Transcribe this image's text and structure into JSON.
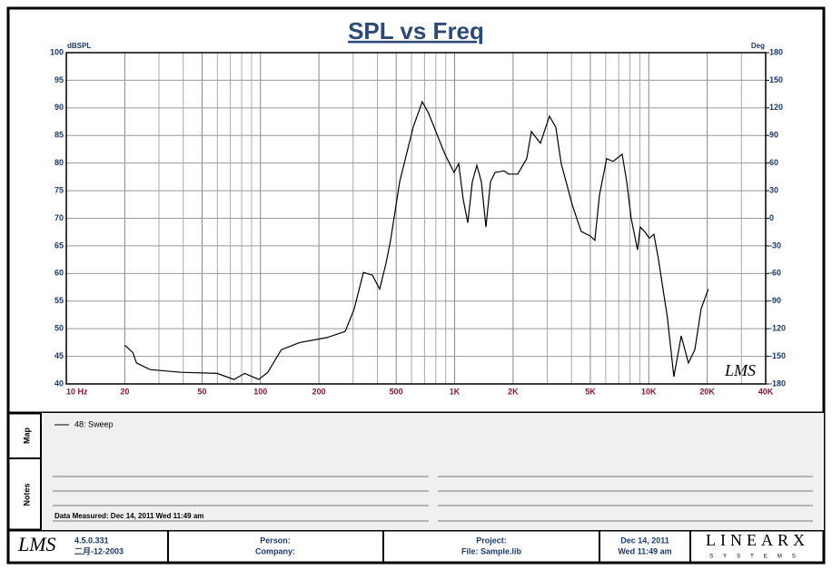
{
  "chart_data": {
    "type": "line",
    "title": "SPL vs Freq",
    "ylabel": "dBSPL",
    "y2label": "Deg",
    "annotation": "LMS",
    "xscale": "log",
    "grid": true,
    "xlim": [
      10,
      40000
    ],
    "xticks": [
      {
        "value": 10,
        "label": "10  Hz"
      },
      20,
      50,
      100,
      200,
      500,
      {
        "value": 1000,
        "label": "1K"
      },
      {
        "value": 2000,
        "label": "2K"
      },
      {
        "value": 5000,
        "label": "5K"
      },
      {
        "value": 10000,
        "label": "10K"
      },
      {
        "value": 20000,
        "label": "20K"
      },
      {
        "value": 40000,
        "label": "40K"
      }
    ],
    "xminorticks": [
      30,
      40,
      60,
      70,
      80,
      90,
      300,
      400,
      600,
      700,
      800,
      900,
      3000,
      4000,
      6000,
      7000,
      8000,
      9000,
      30000
    ],
    "ylim": [
      40,
      100
    ],
    "yticks": [
      40,
      45,
      50,
      55,
      60,
      65,
      70,
      75,
      80,
      85,
      90,
      95,
      100
    ],
    "y2lim": [
      -180,
      180
    ],
    "y2ticks": [
      -180,
      -150,
      -120,
      -90,
      -60,
      -30,
      0,
      30,
      60,
      90,
      120,
      150,
      180
    ],
    "series": [
      {
        "name": "48: Sweep",
        "color": "#000000",
        "x": [
          20,
          22,
          23,
          27,
          39,
          60,
          73,
          83,
          98,
          109,
          128,
          159,
          220,
          273,
          304,
          339,
          377,
          411,
          443,
          468,
          521,
          612,
          681,
          735,
          801,
          891,
          993,
          1049,
          1107,
          1168,
          1233,
          1301,
          1374,
          1449,
          1529,
          1614,
          1796,
          1897,
          2113,
          2350,
          2483,
          2766,
          3078,
          3319,
          3540,
          4029,
          4487,
          4999,
          5272,
          5569,
          6068,
          6546,
          7295,
          7695,
          8110,
          8750,
          9037,
          9530,
          10069,
          10617,
          11194,
          12475,
          13460,
          14690,
          16000,
          17270,
          18590,
          20260
        ],
        "values": [
          47,
          45.7,
          43.8,
          42.6,
          42.1,
          41.9,
          40.8,
          41.9,
          40.8,
          42.1,
          46.2,
          47.5,
          48.4,
          49.5,
          53.6,
          60.2,
          59.7,
          57.2,
          61.8,
          66,
          76.6,
          86.5,
          91.1,
          89,
          85.7,
          81.6,
          78.3,
          79.9,
          73.4,
          69.2,
          76.6,
          79.6,
          76.6,
          68.4,
          76.6,
          78.3,
          78.6,
          78,
          78,
          80.8,
          85.7,
          83.6,
          88.5,
          86.5,
          79.9,
          72.5,
          67.6,
          66.8,
          66,
          74.2,
          80.8,
          80.3,
          81.6,
          76.6,
          70,
          64.3,
          68.4,
          67.6,
          66.4,
          67.1,
          62.7,
          52,
          41.3,
          48.7,
          43.8,
          46.2,
          53.6,
          57.2
        ]
      }
    ]
  },
  "map": {
    "label": "Map"
  },
  "notes": {
    "label": "Notes",
    "measured": "Data Measured: Dec 14, 2011  Wed 11:49 am"
  },
  "footer": {
    "logo": "LMS",
    "version": "4.5.0.331",
    "date_code": "二月-12-2003",
    "person": "Person:",
    "company": "Company:",
    "project": "Project:",
    "file": "File: Sample.lib",
    "date": "Dec 14, 2011",
    "time": "Wed 11:49 am",
    "brand": "LINEARX",
    "brand_sub": "SYSTEMS"
  }
}
